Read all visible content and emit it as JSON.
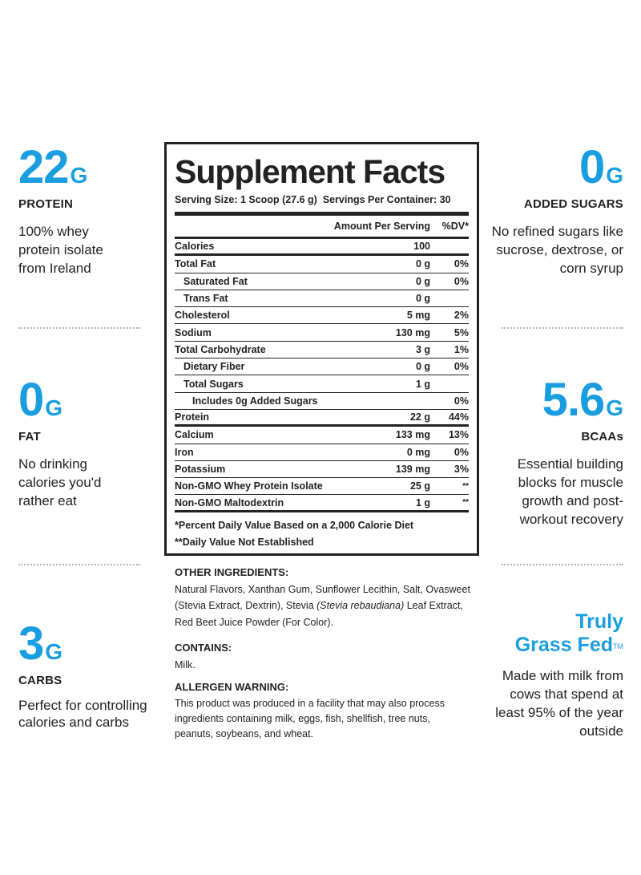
{
  "left_stats": [
    {
      "value": "22",
      "unit": "G",
      "label": "PROTEIN",
      "desc": "100% whey protein isolate from Ireland"
    },
    {
      "value": "0",
      "unit": "G",
      "label": "FAT",
      "desc": "No drinking calories you'd rather eat"
    },
    {
      "value": "3",
      "unit": "G",
      "label": "CARBS",
      "desc": "Perfect for controlling calories and carbs"
    }
  ],
  "right_stats": [
    {
      "value": "0",
      "unit": "G",
      "label": "ADDED SUGARS",
      "desc": "No refined sugars like sucrose, dextrose, or corn syrup"
    },
    {
      "value": "5.6",
      "unit": "G",
      "label": "BCAAs",
      "desc": "Essential building blocks for muscle growth and post-workout recovery"
    }
  ],
  "grass_fed": {
    "line1": "Truly",
    "line2": "Grass Fed",
    "tm": "TM",
    "desc": "Made with milk from cows that spend at least 95% of the year outside"
  },
  "facts": {
    "title": "Supplement Facts",
    "serving": "Serving Size: 1 Scoop (27.6 g)  Servings Per Container: 30",
    "header_amount": "Amount Per Serving",
    "header_dv": "%DV*",
    "rows": [
      {
        "name": "Calories",
        "amount": "100",
        "dv": ""
      },
      {
        "name": "Total Fat",
        "amount": "0 g",
        "dv": "0%"
      },
      {
        "name": "Saturated Fat",
        "amount": "0 g",
        "dv": "0%"
      },
      {
        "name": "Trans Fat",
        "amount": "0 g",
        "dv": ""
      },
      {
        "name": "Cholesterol",
        "amount": "5 mg",
        "dv": "2%"
      },
      {
        "name": "Sodium",
        "amount": "130 mg",
        "dv": "5%"
      },
      {
        "name": "Total Carbohydrate",
        "amount": "3 g",
        "dv": "1%"
      },
      {
        "name": "Dietary Fiber",
        "amount": "0 g",
        "dv": "0%"
      },
      {
        "name": "Total Sugars",
        "amount": "1 g",
        "dv": ""
      },
      {
        "name": "Includes 0g Added Sugars",
        "amount": "",
        "dv": "0%"
      },
      {
        "name": "Protein",
        "amount": "22 g",
        "dv": "44%"
      },
      {
        "name": "Calcium",
        "amount": "133 mg",
        "dv": "13%"
      },
      {
        "name": "Iron",
        "amount": "0 mg",
        "dv": "0%"
      },
      {
        "name": "Potassium",
        "amount": "139 mg",
        "dv": "3%"
      },
      {
        "name": "Non-GMO Whey Protein Isolate",
        "amount": "25 g",
        "dv": "**"
      },
      {
        "name": "Non-GMO Maltodextrin",
        "amount": "1 g",
        "dv": "**"
      }
    ],
    "footnote1": "*Percent Daily Value Based on a 2,000 Calorie Diet",
    "footnote2": "**Daily Value Not Established"
  },
  "ingredients": {
    "other_head": "OTHER INGREDIENTS:",
    "other_part1": "Natural Flavors, Xanthan Gum, Sunflower Lecithin, Salt, Ovasweet (Stevia Extract, Dextrin), Stevia ",
    "other_italic": "(Stevia rebaudiana)",
    "other_part2": " Leaf Extract, Red Beet Juice Powder (For Color).",
    "contains_head": "CONTAINS:",
    "contains_body": "Milk.",
    "allergen_head": "ALLERGEN WARNING:",
    "allergen_body": "This product was produced in a facility that may also process ingredients containing milk, eggs, fish, shellfish, tree nuts, peanuts, soybeans, and wheat."
  }
}
